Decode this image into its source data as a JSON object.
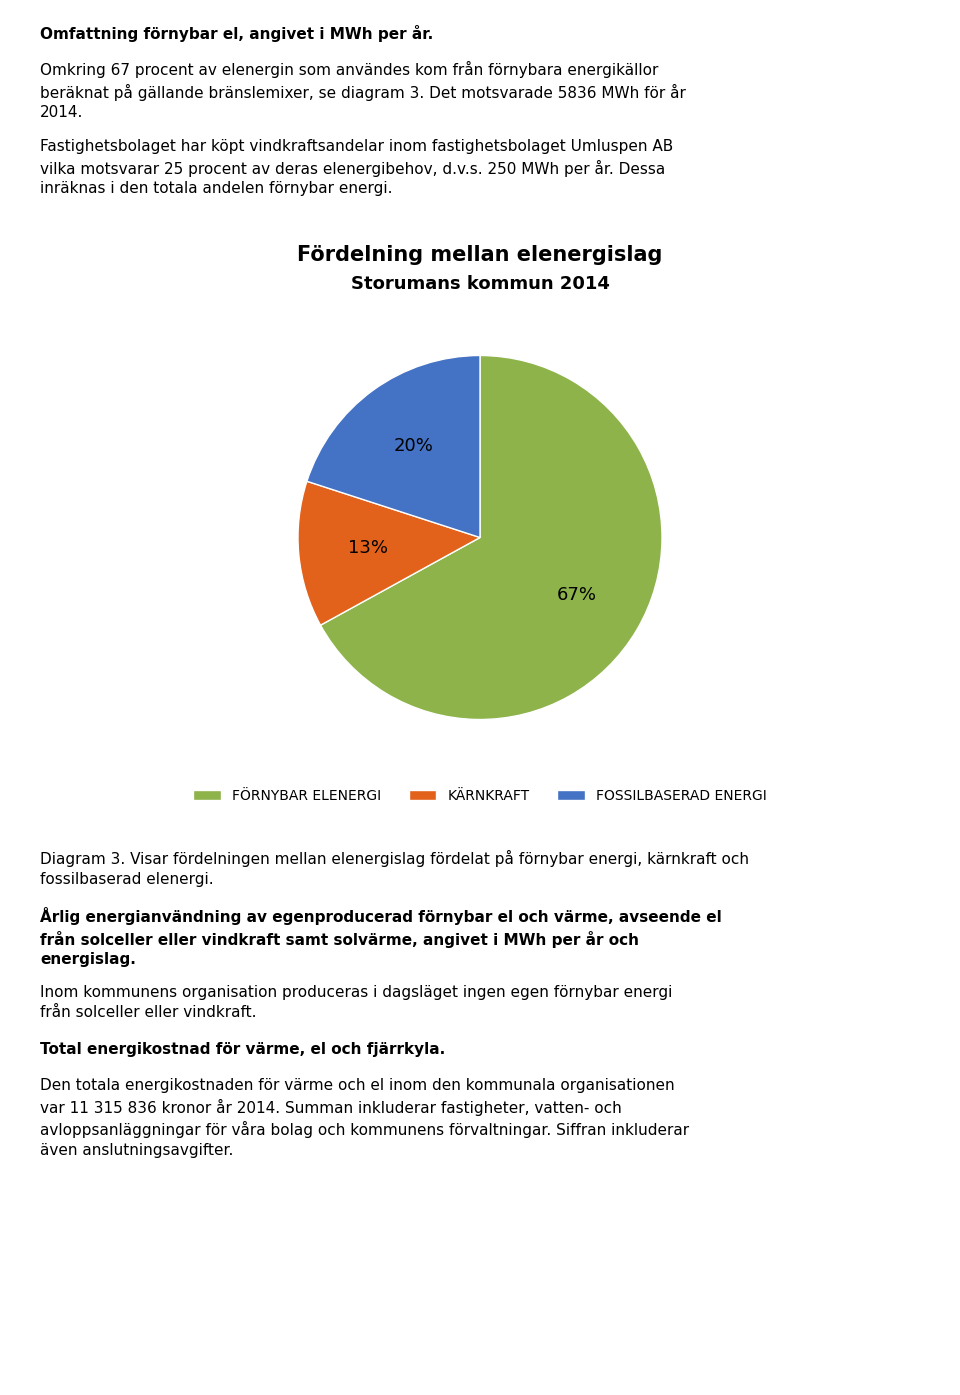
{
  "chart_data": {
    "type": "pie",
    "title": "Fördelning mellan elenergislag",
    "subtitle": "Storumans kommun 2014",
    "categories": [
      "FÖRNYBAR ELENERGI",
      "KÄRNKRAFT",
      "FOSSILBASERAD ENERGI"
    ],
    "values": [
      67,
      13,
      20
    ],
    "value_labels": [
      "67%",
      "13%",
      "20%"
    ],
    "data_labels": true,
    "colors": [
      "#8db34a",
      "#e2621b",
      "#4472c4"
    ],
    "legend": "lower center",
    "annotations": [
      "Omfattning förnybar el, angivet i MWh per år.",
      "Omkring 67 procent av elenergin som användes kom från förnybara energikällor\nberäknat på gällande bränslemixer, se diagram 3. Det motsvarade 5836 MWh för år\n2014.",
      "Fastighetsbolaget har köpt vindkraftsandelar inom fastighetsbolaget Umluspen AB\nvilka motsvarar 25 procent av deras elenergibehov, d.v.s. 250 MWh per år. Dessa\ninräknas i den totala andelen förnybar energi.",
      "Diagram 3. Visar fördelningen mellan elenergislag fördelat på förnybar energi, kärnkraft och\nfossilbaserad elenergi.",
      "Årlig energianvändning av egenproducerad förnybar el och värme, avseende el\nfrån solceller eller vindkraft samt solvärme, angivet i MWh per år och\nenergislag.",
      "Inom kommunens organisation produceras i dagsläget ingen egen förnybar energi\nfrån solceller eller vindkraft.",
      "Total energikostnad för värme, el och fjärrkyla.",
      "Den totala energikostnaden för värme och el inom den kommunala organisationen\nvar 11 315 836 kronor år 2014. Summan inkluderar fastigheter, vatten- och\navloppsanläggningar för våra bolag och kommunens förvaltningar. Siffran inkluderar\näven anslutningsavgifter."
    ]
  }
}
